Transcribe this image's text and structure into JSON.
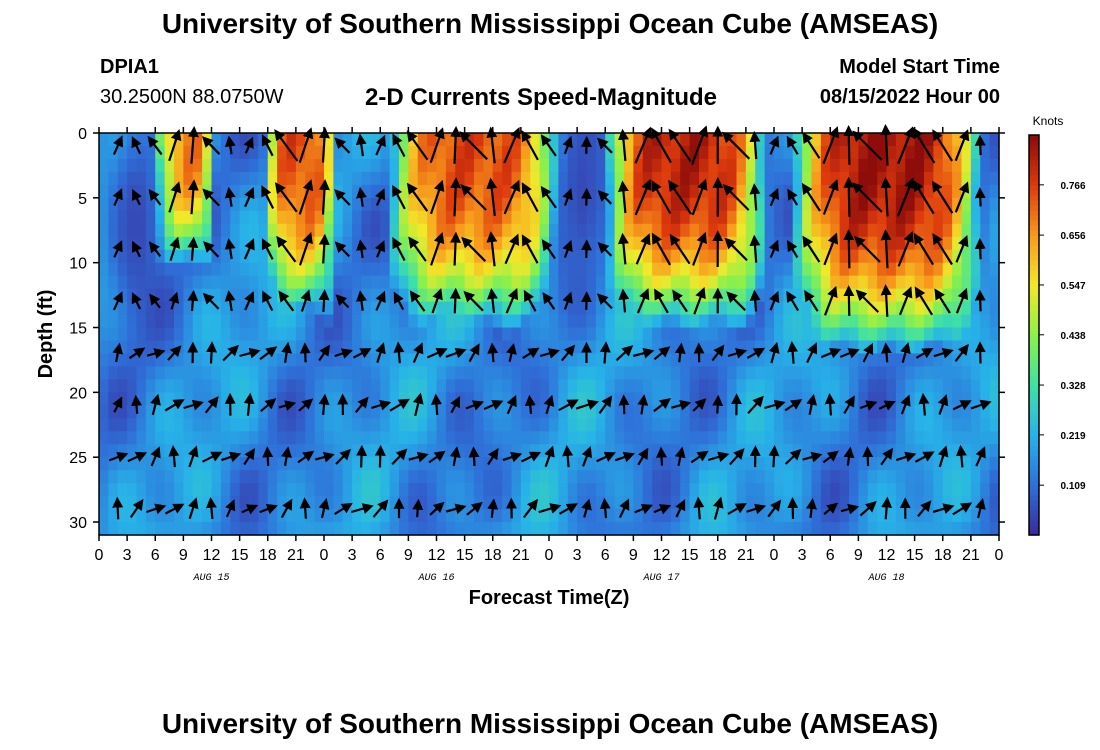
{
  "header": {
    "title": "University of Southern Mississippi Ocean Cube (AMSEAS)",
    "station_id": "DPIA1",
    "station_coords": "30.2500N  88.0750W",
    "chart_title": "2-D Currents Speed-Magnitude",
    "model_start_label": "Model Start Time",
    "model_start_value": "08/15/2022 Hour 00"
  },
  "footer": {
    "title": "University of Southern Mississippi Ocean Cube (AMSEAS)"
  },
  "colors": {
    "scale": [
      "#3a2a9a",
      "#2f6fd8",
      "#27b3e8",
      "#3fe0a6",
      "#8cf04a",
      "#f2e82a",
      "#f79a1c",
      "#dd3a0d",
      "#8a0b0b"
    ]
  },
  "chart_data": {
    "type": "heatmap",
    "title": "2-D Currents Speed-Magnitude",
    "xlabel": "Forecast Time(Z)",
    "ylabel": "Depth (ft)",
    "xlim": [
      0,
      96
    ],
    "ylim": [
      0,
      31
    ],
    "x_ticks": [
      "0",
      "3",
      "6",
      "9",
      "12",
      "15",
      "18",
      "21",
      "0",
      "3",
      "6",
      "9",
      "12",
      "15",
      "18",
      "21",
      "0",
      "3",
      "6",
      "9",
      "12",
      "15",
      "18",
      "21",
      "0",
      "3",
      "6",
      "9",
      "12",
      "15",
      "18",
      "21",
      "0"
    ],
    "y_ticks": [
      "0",
      "5",
      "10",
      "15",
      "20",
      "25",
      "30"
    ],
    "day_labels": [
      "AUG 15",
      "AUG 16",
      "AUG 17",
      "AUG 18"
    ],
    "colorbar": {
      "label": "Knots",
      "min": 0,
      "max": 0.875,
      "ticks": [
        "0.109",
        "0.219",
        "0.328",
        "0.438",
        "0.547",
        "0.656",
        "0.766"
      ]
    },
    "high_speed_cores": [
      {
        "hours": [
          7,
          11
        ],
        "depth_ft": [
          0,
          11
        ],
        "peak_knots": 0.7
      },
      {
        "hours": [
          19,
          24
        ],
        "depth_ft": [
          0,
          15
        ],
        "peak_knots": 0.75
      },
      {
        "hours": [
          32,
          48
        ],
        "depth_ft": [
          0,
          16
        ],
        "peak_knots": 0.75
      },
      {
        "hours": [
          55,
          70
        ],
        "depth_ft": [
          0,
          16
        ],
        "peak_knots": 0.82
      },
      {
        "hours": [
          75,
          93
        ],
        "depth_ft": [
          0,
          18
        ],
        "peak_knots": 0.85
      }
    ],
    "low_speed_cores": [
      {
        "hours": [
          2,
          6
        ],
        "depth_ft": [
          0,
          14
        ],
        "low_knots": 0.05
      },
      {
        "hours": [
          50,
          53
        ],
        "depth_ft": [
          0,
          10
        ],
        "low_knots": 0.05
      }
    ]
  }
}
